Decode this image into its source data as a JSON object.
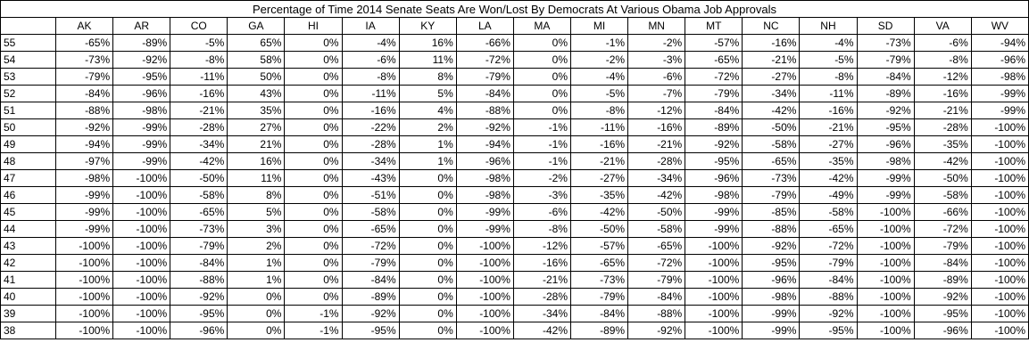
{
  "chart_data": {
    "type": "table",
    "title": "Percentage of Time 2014 Senate Seats Are Won/Lost By Democrats At Various Obama Job Approvals",
    "columns": [
      "AK",
      "AR",
      "CO",
      "GA",
      "HI",
      "IA",
      "KY",
      "LA",
      "MA",
      "MI",
      "MN",
      "MT",
      "NC",
      "NH",
      "SD",
      "VA",
      "WV"
    ],
    "rows": [
      {
        "approval": "55",
        "values": [
          "-65%",
          "-89%",
          "-5%",
          "65%",
          "0%",
          "-4%",
          "16%",
          "-66%",
          "0%",
          "-1%",
          "-2%",
          "-57%",
          "-16%",
          "-4%",
          "-73%",
          "-6%",
          "-94%"
        ]
      },
      {
        "approval": "54",
        "values": [
          "-73%",
          "-92%",
          "-8%",
          "58%",
          "0%",
          "-6%",
          "11%",
          "-72%",
          "0%",
          "-2%",
          "-3%",
          "-65%",
          "-21%",
          "-5%",
          "-79%",
          "-8%",
          "-96%"
        ]
      },
      {
        "approval": "53",
        "values": [
          "-79%",
          "-95%",
          "-11%",
          "50%",
          "0%",
          "-8%",
          "8%",
          "-79%",
          "0%",
          "-4%",
          "-6%",
          "-72%",
          "-27%",
          "-8%",
          "-84%",
          "-12%",
          "-98%"
        ]
      },
      {
        "approval": "52",
        "values": [
          "-84%",
          "-96%",
          "-16%",
          "43%",
          "0%",
          "-11%",
          "5%",
          "-84%",
          "0%",
          "-5%",
          "-7%",
          "-79%",
          "-34%",
          "-11%",
          "-89%",
          "-16%",
          "-99%"
        ]
      },
      {
        "approval": "51",
        "values": [
          "-88%",
          "-98%",
          "-21%",
          "35%",
          "0%",
          "-16%",
          "4%",
          "-88%",
          "0%",
          "-8%",
          "-12%",
          "-84%",
          "-42%",
          "-16%",
          "-92%",
          "-21%",
          "-99%"
        ]
      },
      {
        "approval": "50",
        "values": [
          "-92%",
          "-99%",
          "-28%",
          "27%",
          "0%",
          "-22%",
          "2%",
          "-92%",
          "-1%",
          "-11%",
          "-16%",
          "-89%",
          "-50%",
          "-21%",
          "-95%",
          "-28%",
          "-100%"
        ]
      },
      {
        "approval": "49",
        "values": [
          "-94%",
          "-99%",
          "-34%",
          "21%",
          "0%",
          "-28%",
          "1%",
          "-94%",
          "-1%",
          "-16%",
          "-21%",
          "-92%",
          "-58%",
          "-27%",
          "-96%",
          "-35%",
          "-100%"
        ]
      },
      {
        "approval": "48",
        "values": [
          "-97%",
          "-99%",
          "-42%",
          "16%",
          "0%",
          "-34%",
          "1%",
          "-96%",
          "-1%",
          "-21%",
          "-28%",
          "-95%",
          "-65%",
          "-35%",
          "-98%",
          "-42%",
          "-100%"
        ]
      },
      {
        "approval": "47",
        "values": [
          "-98%",
          "-100%",
          "-50%",
          "11%",
          "0%",
          "-43%",
          "0%",
          "-98%",
          "-2%",
          "-27%",
          "-34%",
          "-96%",
          "-73%",
          "-42%",
          "-99%",
          "-50%",
          "-100%"
        ]
      },
      {
        "approval": "46",
        "values": [
          "-99%",
          "-100%",
          "-58%",
          "8%",
          "0%",
          "-51%",
          "0%",
          "-98%",
          "-3%",
          "-35%",
          "-42%",
          "-98%",
          "-79%",
          "-49%",
          "-99%",
          "-58%",
          "-100%"
        ]
      },
      {
        "approval": "45",
        "values": [
          "-99%",
          "-100%",
          "-65%",
          "5%",
          "0%",
          "-58%",
          "0%",
          "-99%",
          "-6%",
          "-42%",
          "-50%",
          "-99%",
          "-85%",
          "-58%",
          "-100%",
          "-66%",
          "-100%"
        ]
      },
      {
        "approval": "44",
        "values": [
          "-99%",
          "-100%",
          "-73%",
          "3%",
          "0%",
          "-65%",
          "0%",
          "-99%",
          "-8%",
          "-50%",
          "-58%",
          "-99%",
          "-88%",
          "-65%",
          "-100%",
          "-72%",
          "-100%"
        ]
      },
      {
        "approval": "43",
        "values": [
          "-100%",
          "-100%",
          "-79%",
          "2%",
          "0%",
          "-72%",
          "0%",
          "-100%",
          "-12%",
          "-57%",
          "-65%",
          "-100%",
          "-92%",
          "-72%",
          "-100%",
          "-79%",
          "-100%"
        ]
      },
      {
        "approval": "42",
        "values": [
          "-100%",
          "-100%",
          "-84%",
          "1%",
          "0%",
          "-79%",
          "0%",
          "-100%",
          "-16%",
          "-65%",
          "-72%",
          "-100%",
          "-95%",
          "-79%",
          "-100%",
          "-84%",
          "-100%"
        ]
      },
      {
        "approval": "41",
        "values": [
          "-100%",
          "-100%",
          "-88%",
          "1%",
          "0%",
          "-84%",
          "0%",
          "-100%",
          "-21%",
          "-73%",
          "-79%",
          "-100%",
          "-96%",
          "-84%",
          "-100%",
          "-89%",
          "-100%"
        ]
      },
      {
        "approval": "40",
        "values": [
          "-100%",
          "-100%",
          "-92%",
          "0%",
          "0%",
          "-89%",
          "0%",
          "-100%",
          "-28%",
          "-79%",
          "-84%",
          "-100%",
          "-98%",
          "-88%",
          "-100%",
          "-92%",
          "-100%"
        ]
      },
      {
        "approval": "39",
        "values": [
          "-100%",
          "-100%",
          "-95%",
          "0%",
          "-1%",
          "-92%",
          "0%",
          "-100%",
          "-34%",
          "-84%",
          "-88%",
          "-100%",
          "-99%",
          "-92%",
          "-100%",
          "-95%",
          "-100%"
        ]
      },
      {
        "approval": "38",
        "values": [
          "-100%",
          "-100%",
          "-96%",
          "0%",
          "-1%",
          "-95%",
          "0%",
          "-100%",
          "-42%",
          "-89%",
          "-92%",
          "-100%",
          "-99%",
          "-95%",
          "-100%",
          "-96%",
          "-100%"
        ]
      }
    ]
  }
}
